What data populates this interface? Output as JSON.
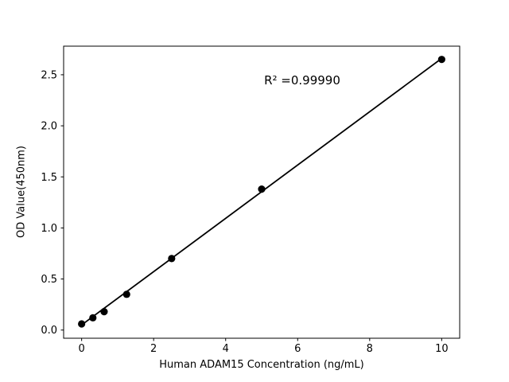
{
  "figure": {
    "background": "#ffffff",
    "xlabel": "Human ADAM15 Concentration (ng/mL)",
    "ylabel": "OD Value(450nm)",
    "annotation": "R² =0.99990"
  },
  "chart_data": {
    "type": "scatter",
    "title": "",
    "xlabel": "Human ADAM15 Concentration (ng/mL)",
    "ylabel": "OD Value(450nm)",
    "annotation": "R² =0.99990",
    "x": [
      0,
      0.3125,
      0.625,
      1.25,
      2.5,
      5,
      10
    ],
    "y": [
      0.06,
      0.12,
      0.18,
      0.35,
      0.7,
      1.38,
      2.65
    ],
    "fit_line": {
      "x": [
        0,
        10
      ],
      "y": [
        0.05,
        2.66
      ]
    },
    "xticks": [
      0,
      2,
      4,
      6,
      8,
      10
    ],
    "xtick_labels": [
      "0",
      "2",
      "4",
      "6",
      "8",
      "10"
    ],
    "yticks": [
      0,
      0.5,
      1,
      1.5,
      2,
      2.5
    ],
    "ytick_labels": [
      "0.0",
      "0.5",
      "1.0",
      "1.5",
      "2.0",
      "2.5"
    ],
    "xlim": [
      -0.5,
      10.5
    ],
    "ylim": [
      -0.08,
      2.78
    ],
    "grid": false,
    "legend_position": "none",
    "marker_color": "#000000",
    "line_color": "#000000",
    "axis_color": "#000000",
    "marker_radius": 4.6,
    "line_width": 1.8
  }
}
